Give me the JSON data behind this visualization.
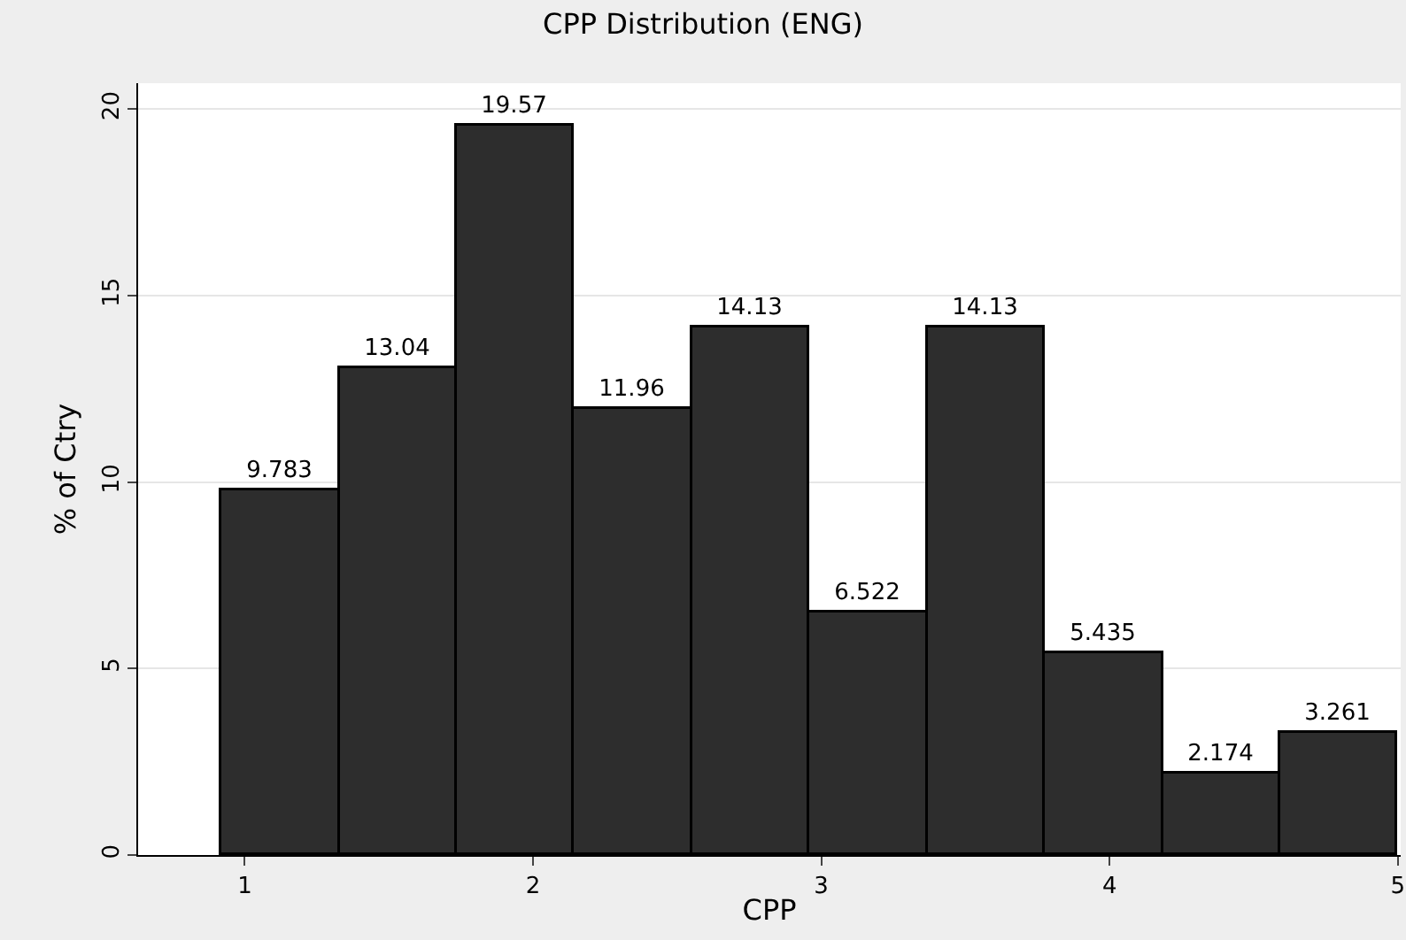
{
  "chart_data": {
    "type": "histogram",
    "title": "CPP Distribution (ENG)",
    "xlabel": "CPP",
    "ylabel": "% of Ctry",
    "bins": [
      0.92,
      1.328,
      1.736,
      2.144,
      2.552,
      2.96,
      3.368,
      3.776,
      4.184,
      4.592,
      5.0
    ],
    "values": [
      9.783,
      13.04,
      19.57,
      11.96,
      14.13,
      6.522,
      14.13,
      5.435,
      2.174,
      3.261
    ],
    "color": "#2d2d2d",
    "data_labels": true,
    "xlim": [
      0.63,
      5.01
    ],
    "xticks": [
      1,
      2,
      3,
      4,
      5
    ],
    "ylim": [
      0,
      20.7
    ],
    "yticks": [
      0,
      5,
      10,
      15,
      20
    ],
    "grid": "y",
    "legend": false
  }
}
